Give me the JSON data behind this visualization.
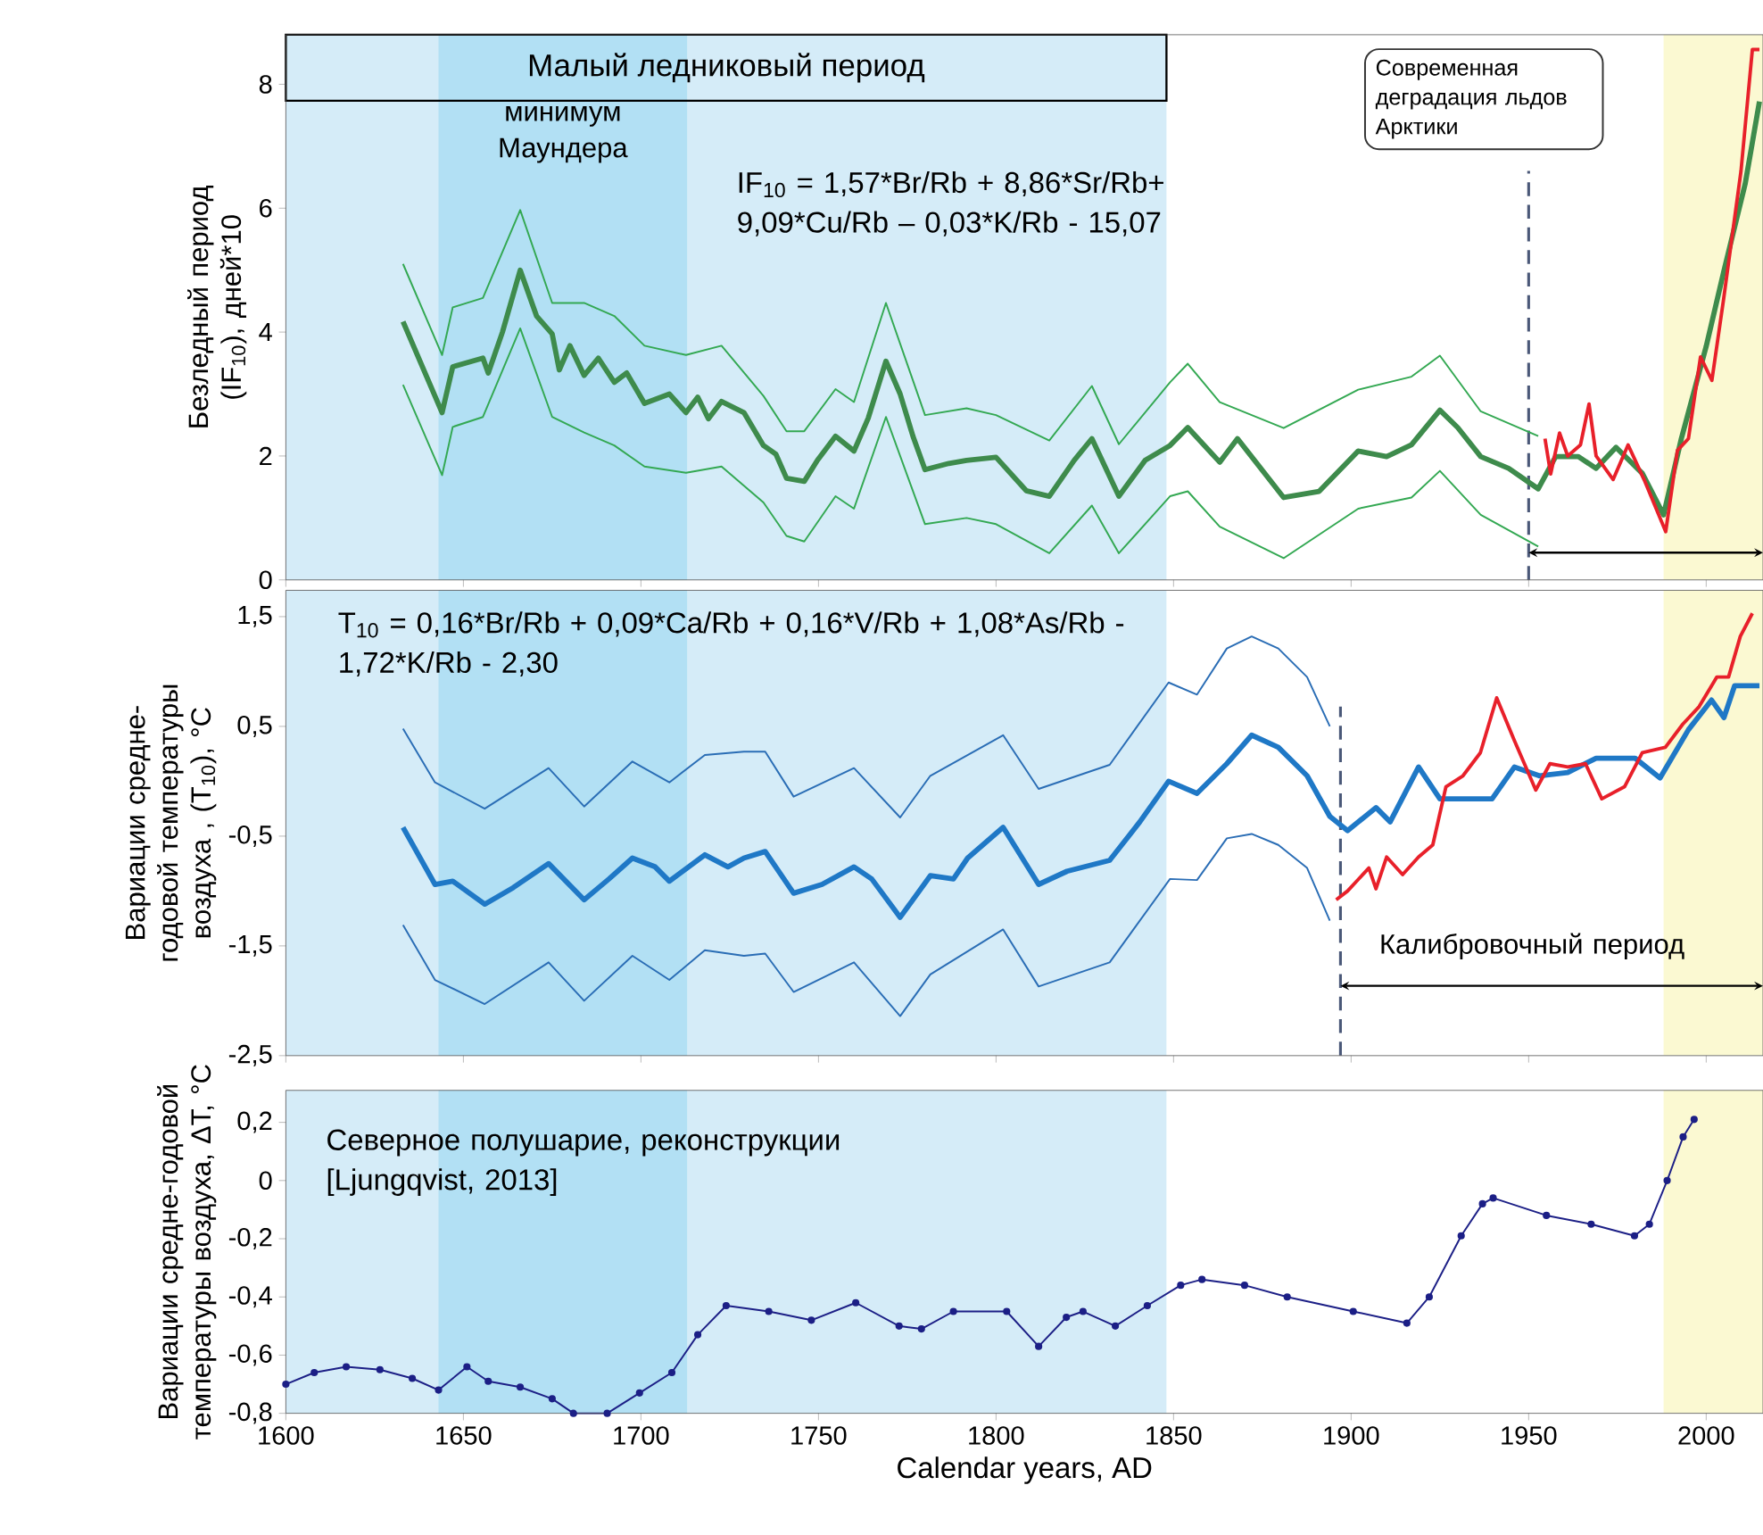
{
  "chart_data": [
    {
      "type": "line",
      "ylabel": "Безледный период (IF$_{10}$), дней*10",
      "xlim": [
        1600,
        2016
      ],
      "ylim": [
        0,
        8.8
      ],
      "xticks": [
        1600,
        1650,
        1700,
        1750,
        1800,
        1850,
        1900,
        1950,
        2000
      ],
      "yticks": [
        0,
        2,
        4,
        6,
        8
      ],
      "tick_labels": "y",
      "annotations": [
        "IF$_{10}$ =  1,57*Br/Rb + 8,86*Sr/Rb+ 9,09*Cu/Rb – 0,03*K/Rb - 15,07",
        "Современная деградация льдов Арктики"
      ],
      "bands": [
        {
          "axis": "x",
          "from": 1600,
          "to": 1848,
          "label": "Малый ледниковый период",
          "color": "#d5ecf8"
        },
        {
          "axis": "x",
          "from": 1643,
          "to": 1713,
          "label": "минимум Маундера",
          "color": "#b2e0f4"
        },
        {
          "axis": "x",
          "from": 1988,
          "to": 2016,
          "color": "#fbf9d2"
        }
      ],
      "ref_lines": [
        {
          "axis": "x",
          "value": 1950,
          "color": "#4a5878",
          "line_style": "dashed"
        }
      ],
      "series": [
        {
          "color": "#3e8b4c",
          "x": [
            1633,
            1644,
            1647,
            1655.5,
            1657,
            1661,
            1666,
            1670.6,
            1675,
            1677,
            1680,
            1684,
            1688,
            1692.5,
            1696,
            1701,
            1708,
            1712.7,
            1716,
            1719,
            1722.7,
            1729,
            1734.5,
            1738,
            1741,
            1746,
            1749.7,
            1754.8,
            1760,
            1764,
            1769,
            1773,
            1776.6,
            1780,
            1786.7,
            1791.7,
            1800,
            1808.5,
            1815,
            1822,
            1827,
            1834.6,
            1842,
            1849,
            1854,
            1863,
            1868,
            1881,
            1891,
            1902,
            1910,
            1917,
            1925,
            1930,
            1936.5,
            1944.4,
            1952.7,
            1957.6,
            1964,
            1969,
            1974.6,
            1982,
            1988,
            1993,
            2000,
            2005,
            2011,
            2015
          ],
          "values": [
            4.17,
            2.7,
            3.44,
            3.58,
            3.34,
            4.0,
            5.0,
            4.26,
            3.97,
            3.39,
            3.78,
            3.3,
            3.58,
            3.19,
            3.34,
            2.85,
            3.0,
            2.7,
            2.95,
            2.6,
            2.88,
            2.7,
            2.17,
            2.03,
            1.64,
            1.59,
            1.93,
            2.32,
            2.08,
            2.61,
            3.53,
            3.0,
            2.32,
            1.78,
            1.88,
            1.93,
            1.98,
            1.44,
            1.35,
            1.93,
            2.28,
            1.35,
            1.93,
            2.17,
            2.46,
            1.9,
            2.28,
            1.33,
            1.43,
            2.08,
            1.99,
            2.18,
            2.74,
            2.46,
            1.99,
            1.8,
            1.47,
            1.99,
            1.99,
            1.8,
            2.14,
            1.72,
            1.05,
            2.28,
            3.77,
            4.99,
            6.4,
            7.72
          ]
        },
        {
          "color": "#33a852",
          "x": [
            1633,
            1644,
            1647,
            1655.5,
            1666,
            1675,
            1684,
            1692.5,
            1701,
            1712.7,
            1722.7,
            1734.5,
            1741,
            1746,
            1754.8,
            1760,
            1769,
            1780,
            1791.7,
            1800,
            1815,
            1827,
            1834.6,
            1849,
            1854,
            1863,
            1881,
            1902,
            1917,
            1925,
            1936.5,
            1952.7
          ],
          "values": [
            5.1,
            3.63,
            4.4,
            4.55,
            5.97,
            4.47,
            4.47,
            4.26,
            3.78,
            3.63,
            3.78,
            2.97,
            2.4,
            2.4,
            3.08,
            2.87,
            4.47,
            2.66,
            2.77,
            2.66,
            2.25,
            3.13,
            2.19,
            3.19,
            3.49,
            2.87,
            2.45,
            3.07,
            3.28,
            3.62,
            2.72,
            2.32
          ]
        },
        {
          "color": "#33a852",
          "x": [
            1633,
            1644,
            1647,
            1655.5,
            1666,
            1675,
            1684,
            1692.5,
            1701,
            1712.7,
            1722.7,
            1734.5,
            1741,
            1746,
            1754.8,
            1760,
            1769,
            1780,
            1791.7,
            1800,
            1815,
            1827,
            1834.6,
            1849,
            1854,
            1863,
            1881,
            1902,
            1917,
            1925,
            1936.5,
            1952.7
          ],
          "values": [
            3.15,
            1.69,
            2.47,
            2.63,
            4.06,
            2.63,
            2.38,
            2.17,
            1.83,
            1.73,
            1.83,
            1.25,
            0.71,
            0.62,
            1.35,
            1.15,
            2.63,
            0.9,
            1.0,
            0.9,
            0.43,
            1.2,
            0.43,
            1.35,
            1.43,
            0.86,
            0.35,
            1.15,
            1.33,
            1.76,
            1.05,
            0.54
          ]
        },
        {
          "color": "#e8202a",
          "x": [
            1954.6,
            1956.2,
            1958.7,
            1961,
            1964.6,
            1967,
            1969,
            1973.8,
            1978,
            1982.5,
            1988.6,
            1991.9,
            1995,
            1998.4,
            2001.6,
            2004.9,
            2009.8,
            2013,
            2015
          ],
          "values": [
            2.28,
            1.71,
            2.37,
            2.0,
            2.18,
            2.84,
            2.0,
            1.62,
            2.18,
            1.62,
            0.78,
            2.09,
            2.28,
            3.6,
            3.22,
            4.53,
            6.6,
            8.56,
            8.56
          ]
        }
      ]
    },
    {
      "type": "line",
      "ylabel": "Вариации средне-годовой температуры воздуха , (T$_{10}$), °C",
      "xlim": [
        1600,
        2016
      ],
      "ylim": [
        -2.5,
        1.74
      ],
      "xticks": [
        1600,
        1650,
        1700,
        1750,
        1800,
        1850,
        1900,
        1950,
        2000
      ],
      "yticks": [
        {
          "value": 1.5,
          "label": "1,5"
        },
        {
          "value": 0.5,
          "label": "0,5"
        },
        {
          "value": -0.5,
          "label": "-0,5"
        },
        {
          "value": -1.5,
          "label": "-1,5"
        },
        {
          "value": -2.5,
          "label": "-2,5"
        }
      ],
      "tick_labels": "y",
      "annotations": [
        "T$_{10}$ =  0,16*Br/Rb + 0,09*Ca/Rb + 0,16*V/Rb + 1,08*As/Rb - 1,72*K/Rb - 2,30",
        "Калибровочный период"
      ],
      "bands": [
        {
          "axis": "x",
          "from": 1600,
          "to": 1848,
          "color": "#d5ecf8"
        },
        {
          "axis": "x",
          "from": 1643,
          "to": 1713,
          "color": "#b2e0f4"
        },
        {
          "axis": "x",
          "from": 1988,
          "to": 2016,
          "color": "#fbf9d2"
        }
      ],
      "ref_lines": [
        {
          "axis": "x",
          "value": 1897,
          "color": "#4a5878",
          "line_style": "dashed"
        }
      ],
      "series": [
        {
          "color": "#1f78c6",
          "x": [
            1633,
            1642,
            1647,
            1656,
            1664,
            1674,
            1684,
            1691,
            1697.6,
            1704,
            1708,
            1718,
            1724.5,
            1729,
            1735,
            1743,
            1751,
            1760,
            1765,
            1773,
            1781.5,
            1788,
            1792,
            1802,
            1812,
            1820,
            1832,
            1840.5,
            1848.6,
            1856.6,
            1865,
            1872,
            1879.5,
            1887.6,
            1894,
            1899,
            1907,
            1911,
            1919,
            1925,
            1939.7,
            1946,
            1953,
            1961,
            1969,
            1980,
            1987,
            1995,
            2001.5,
            2005,
            2008,
            2015
          ],
          "values": [
            -0.42,
            -0.94,
            -0.91,
            -1.12,
            -0.97,
            -0.75,
            -1.08,
            -0.89,
            -0.7,
            -0.78,
            -0.91,
            -0.67,
            -0.78,
            -0.7,
            -0.64,
            -1.02,
            -0.94,
            -0.78,
            -0.89,
            -1.24,
            -0.86,
            -0.89,
            -0.7,
            -0.42,
            -0.94,
            -0.82,
            -0.72,
            -0.37,
            0.0,
            -0.11,
            0.16,
            0.42,
            0.31,
            0.05,
            -0.32,
            -0.45,
            -0.24,
            -0.37,
            0.13,
            -0.16,
            -0.16,
            0.13,
            0.05,
            0.08,
            0.21,
            0.21,
            0.03,
            0.47,
            0.74,
            0.58,
            0.87,
            0.87
          ]
        },
        {
          "color": "#2a6db5",
          "x": [
            1633,
            1642,
            1656,
            1674,
            1684,
            1697.6,
            1708,
            1718,
            1729,
            1735,
            1743,
            1760,
            1773,
            1781.5,
            1802,
            1812,
            1832,
            1848.6,
            1856.6,
            1865,
            1872,
            1879.5,
            1887.6,
            1894
          ],
          "values": [
            0.48,
            -0.01,
            -0.25,
            0.12,
            -0.23,
            0.18,
            -0.01,
            0.24,
            0.27,
            0.27,
            -0.14,
            0.12,
            -0.33,
            0.05,
            0.42,
            -0.07,
            0.15,
            0.9,
            0.79,
            1.21,
            1.32,
            1.21,
            0.95,
            0.5
          ]
        },
        {
          "color": "#2a6db5",
          "x": [
            1633,
            1642,
            1656,
            1674,
            1684,
            1697.6,
            1708,
            1718,
            1729,
            1735,
            1743,
            1760,
            1773,
            1781.5,
            1802,
            1812,
            1832,
            1849,
            1856.6,
            1865,
            1872,
            1879.5,
            1887.6,
            1894
          ],
          "values": [
            -1.31,
            -1.81,
            -2.03,
            -1.65,
            -2.0,
            -1.59,
            -1.81,
            -1.54,
            -1.59,
            -1.57,
            -1.92,
            -1.65,
            -2.14,
            -1.76,
            -1.35,
            -1.87,
            -1.65,
            -0.89,
            -0.9,
            -0.52,
            -0.48,
            -0.58,
            -0.79,
            -1.27
          ]
        },
        {
          "color": "#e8202a",
          "x": [
            1895.8,
            1899,
            1905,
            1907,
            1910,
            1914.5,
            1919,
            1923,
            1926.7,
            1931.5,
            1936.4,
            1941,
            1946,
            1952,
            1956,
            1961,
            1966,
            1970.6,
            1977,
            1982,
            1988.5,
            1993.4,
            1998,
            2003,
            2006.3,
            2009.6,
            2013
          ],
          "values": [
            -1.08,
            -1.0,
            -0.79,
            -0.98,
            -0.69,
            -0.85,
            -0.69,
            -0.58,
            -0.05,
            0.05,
            0.26,
            0.76,
            0.37,
            -0.08,
            0.16,
            0.13,
            0.16,
            -0.16,
            -0.05,
            0.26,
            0.31,
            0.52,
            0.68,
            0.95,
            0.95,
            1.32,
            1.53
          ]
        }
      ]
    },
    {
      "type": "line",
      "ylabel": "Вариации средне-годовой температуры воздуха, ΔT, °C",
      "xlabel": "Calendar years, AD",
      "xlim": [
        1600,
        2016
      ],
      "ylim": [
        -0.8,
        0.31
      ],
      "xticks": [
        1600,
        1650,
        1700,
        1750,
        1800,
        1850,
        1900,
        1950,
        2000
      ],
      "yticks": [
        {
          "value": 0.2,
          "label": "0,2"
        },
        0,
        {
          "value": -0.2,
          "label": "-0,2"
        },
        {
          "value": -0.4,
          "label": "-0,4"
        },
        {
          "value": -0.6,
          "label": "-0,6"
        },
        {
          "value": -0.8,
          "label": "-0,8"
        }
      ],
      "marker": "circle",
      "annotations": [
        "Северное полушарие, реконструкции [Ljungqvist, 2013]"
      ],
      "bands": [
        {
          "axis": "x",
          "from": 1600,
          "to": 1848,
          "color": "#d5ecf8"
        },
        {
          "axis": "x",
          "from": 1643,
          "to": 1713,
          "color": "#b2e0f4"
        },
        {
          "axis": "x",
          "from": 1988,
          "to": 2016,
          "color": "#fbf9d2"
        }
      ],
      "series": [
        {
          "color": "#1c1f86",
          "x": [
            1600,
            1608,
            1617,
            1626.5,
            1635.6,
            1643,
            1651,
            1657,
            1666,
            1675,
            1681,
            1690.5,
            1699.6,
            1708.7,
            1716,
            1724,
            1736,
            1748,
            1760.5,
            1772.7,
            1779,
            1788,
            1803,
            1812,
            1819.8,
            1824.5,
            1833.6,
            1842.6,
            1852,
            1858,
            1870,
            1882,
            1900.6,
            1915.7,
            1922,
            1931,
            1937,
            1940,
            1955,
            1967.6,
            1979.8,
            1984,
            1989,
            1993.5,
            1996.6
          ],
          "values": [
            -0.7,
            -0.66,
            -0.64,
            -0.65,
            -0.68,
            -0.72,
            -0.64,
            -0.69,
            -0.71,
            -0.75,
            -0.8,
            -0.8,
            -0.73,
            -0.66,
            -0.53,
            -0.43,
            -0.45,
            -0.48,
            -0.42,
            -0.5,
            -0.51,
            -0.45,
            -0.45,
            -0.57,
            -0.47,
            -0.45,
            -0.5,
            -0.43,
            -0.36,
            -0.34,
            -0.36,
            -0.4,
            -0.45,
            -0.49,
            -0.4,
            -0.19,
            -0.08,
            -0.06,
            -0.12,
            -0.15,
            -0.19,
            -0.15,
            0.0,
            0.15,
            0.21
          ]
        }
      ]
    }
  ]
}
